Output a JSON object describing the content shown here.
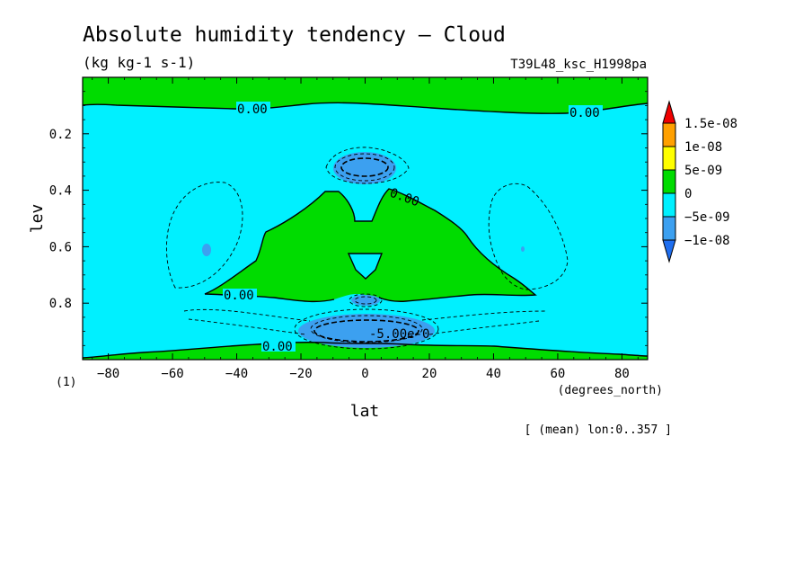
{
  "title": "Absolute humidity tendency — Cloud",
  "units": "(kg kg-1 s-1)",
  "run_label": "T39L48_ksc_H1998pa",
  "footer": "[ (mean) lon:0..357 ]",
  "page_number": "(1)",
  "chart_data": {
    "type": "heatmap",
    "title": "Absolute humidity tendency — Cloud",
    "subtitle": "(kg kg-1 s-1)",
    "xlabel": "lat",
    "xunits": "(degrees_north)",
    "ylabel": "lev",
    "xlim": [
      -88,
      88
    ],
    "ylim": [
      1.0,
      0.0
    ],
    "x_ticks": [
      -80,
      -60,
      -40,
      -20,
      0,
      20,
      40,
      60,
      80
    ],
    "x_tick_labels": [
      "−80",
      "−60",
      "−40",
      "−20",
      "0",
      "20",
      "40",
      "60",
      "80"
    ],
    "y_ticks": [
      0.2,
      0.4,
      0.6,
      0.8
    ],
    "y_tick_labels": [
      "0.2",
      "0.4",
      "0.6",
      "0.8"
    ],
    "contour_labels": [
      "0.00",
      "0.00",
      "0.00",
      "0.00",
      "0.00",
      "-5.00e-0"
    ],
    "colorbar": {
      "labels": [
        "1.5e-08",
        "1e-08",
        "5e-09",
        "0",
        "−5e-09",
        "−1e-08"
      ],
      "levels": [
        -1.5e-08,
        -1e-08,
        -5e-09,
        0,
        5e-09,
        1e-08,
        1.5e-08
      ],
      "colors": [
        "#1e6ef0",
        "#3ca0f0",
        "#00f0ff",
        "#00dc00",
        "#ffff00",
        "#ffa000",
        "#f00000"
      ]
    },
    "colors": {
      "positive_0_5e-9": "#00dc00",
      "negative_0_5e-9": "#00f0ff",
      "negative_5e-9_1e-8": "#3ca0f0",
      "below_1e-8": "#1e6ef0",
      "5e-9_1e-8": "#ffff00",
      "1e-8_1.5e-8": "#ffa000",
      "above_1.5e-8": "#f00000"
    }
  }
}
